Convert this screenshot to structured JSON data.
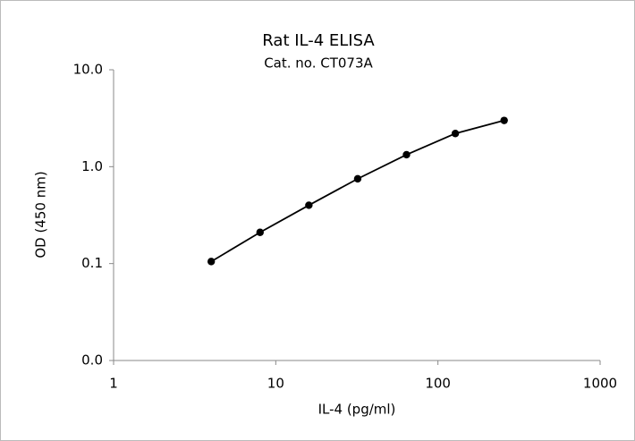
{
  "chart_data": {
    "type": "line",
    "title": "Rat IL-4 ELISA",
    "subtitle": "Cat. no. CT073A",
    "x_label": "IL-4 (pg/ml)",
    "y_label": "OD (450 nm)",
    "x": [
      4,
      8,
      16,
      32,
      64,
      128,
      256
    ],
    "series": [
      {
        "color": "#000000",
        "values": [
          0.105,
          0.21,
          0.4,
          0.75,
          1.33,
          2.2,
          3.0
        ]
      }
    ],
    "xscale": "log",
    "yscale": "log",
    "xlim": [
      1,
      1000
    ],
    "xticks": [
      1,
      10,
      100,
      1000
    ],
    "ylim": [
      0.01,
      10
    ],
    "yticks": [
      {
        "value": 0.01,
        "label": "0.0"
      },
      0.1,
      {
        "value": 1,
        "label": "1.0"
      },
      {
        "value": 10,
        "label": "10.0"
      }
    ],
    "grid": false
  }
}
